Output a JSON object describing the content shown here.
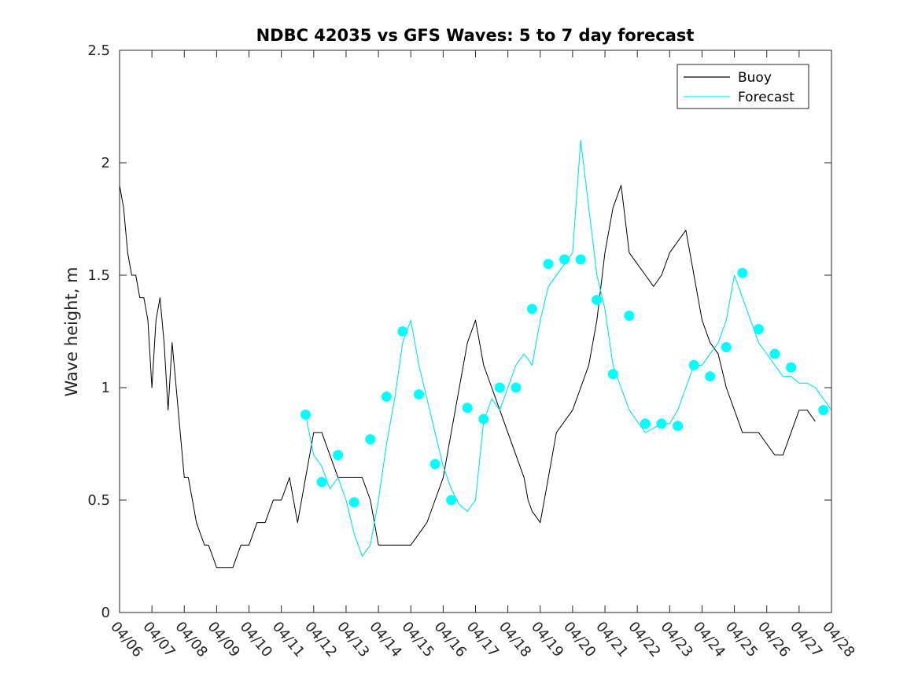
{
  "chart_data": {
    "type": "line",
    "title": "NDBC 42035 vs GFS Waves: 5 to 7 day forecast",
    "xlabel": "",
    "ylabel": "Wave height, m",
    "x_start": "04/06",
    "x_end": "04/28",
    "xlim": [
      "04/06",
      "04/28"
    ],
    "ylim": [
      0,
      2.5
    ],
    "yticks": [
      0,
      0.5,
      1,
      1.5,
      2,
      2.5
    ],
    "ytick_labels": [
      "0",
      "0.5",
      "1",
      "1.5",
      "2",
      "2.5"
    ],
    "xtick_labels": [
      "04/06",
      "04/07",
      "04/08",
      "04/09",
      "04/10",
      "04/11",
      "04/12",
      "04/13",
      "04/14",
      "04/15",
      "04/16",
      "04/17",
      "04/18",
      "04/19",
      "04/20",
      "04/21",
      "04/22",
      "04/23",
      "04/24",
      "04/25",
      "04/26",
      "04/27",
      "04/28"
    ],
    "grid": false,
    "legend_position": "top-right",
    "legend": [
      {
        "label": "Buoy",
        "color": "#000000"
      },
      {
        "label": "Forecast",
        "color": "#00ffff"
      }
    ],
    "colors": {
      "buoy": "#000000",
      "forecast": "#00e5ee",
      "marker": "#00ffff"
    },
    "series": [
      {
        "name": "Buoy",
        "x": [
          "04/06 00:00",
          "04/06 03:00",
          "04/06 06:00",
          "04/06 09:00",
          "04/06 12:00",
          "04/06 15:00",
          "04/06 18:00",
          "04/06 21:00",
          "04/07 00:00",
          "04/07 03:00",
          "04/07 06:00",
          "04/07 09:00",
          "04/07 12:00",
          "04/07 15:00",
          "04/07 18:00",
          "04/07 21:00",
          "04/08 00:00",
          "04/08 03:00",
          "04/08 06:00",
          "04/08 09:00",
          "04/08 12:00",
          "04/08 15:00",
          "04/08 18:00",
          "04/08 21:00",
          "04/09 00:00",
          "04/09 06:00",
          "04/09 12:00",
          "04/09 18:00",
          "04/10 00:00",
          "04/10 06:00",
          "04/10 12:00",
          "04/10 18:00",
          "04/11 00:00",
          "04/11 06:00",
          "04/11 12:00",
          "04/11 18:00",
          "04/12 00:00",
          "04/12 06:00",
          "04/12 12:00",
          "04/12 18:00",
          "04/13 00:00",
          "04/13 06:00",
          "04/13 12:00",
          "04/13 18:00",
          "04/14 00:00",
          "04/14 06:00",
          "04/14 12:00",
          "04/14 18:00",
          "04/15 00:00",
          "04/15 06:00",
          "04/15 12:00",
          "04/15 18:00",
          "04/16 00:00",
          "04/16 06:00",
          "04/16 12:00",
          "04/16 18:00",
          "04/17 00:00",
          "04/17 06:00",
          "04/17 12:00",
          "04/17 18:00",
          "04/18 00:00",
          "04/18 06:00",
          "04/18 12:00",
          "04/18 15:00",
          "04/18 18:00",
          "04/19 00:00",
          "04/19 06:00",
          "04/19 12:00",
          "04/19 18:00",
          "04/20 00:00",
          "04/20 06:00",
          "04/20 12:00",
          "04/20 18:00",
          "04/21 00:00",
          "04/21 06:00",
          "04/21 12:00",
          "04/21 18:00",
          "04/22 00:00",
          "04/22 06:00",
          "04/22 12:00",
          "04/22 18:00",
          "04/23 00:00",
          "04/23 06:00",
          "04/23 12:00",
          "04/23 18:00",
          "04/24 00:00",
          "04/24 06:00",
          "04/24 12:00",
          "04/24 18:00",
          "04/25 00:00",
          "04/25 06:00",
          "04/25 12:00",
          "04/25 18:00",
          "04/26 00:00",
          "04/26 06:00",
          "04/26 12:00",
          "04/26 18:00",
          "04/27 00:00",
          "04/27 06:00",
          "04/27 12:00"
        ],
        "y": [
          1.9,
          1.8,
          1.6,
          1.5,
          1.5,
          1.4,
          1.4,
          1.3,
          1.0,
          1.3,
          1.4,
          1.2,
          0.9,
          1.2,
          1.0,
          0.8,
          0.6,
          0.6,
          0.5,
          0.4,
          0.35,
          0.3,
          0.3,
          0.25,
          0.2,
          0.2,
          0.2,
          0.3,
          0.3,
          0.4,
          0.4,
          0.5,
          0.5,
          0.6,
          0.4,
          0.6,
          0.8,
          0.8,
          0.7,
          0.6,
          0.6,
          0.6,
          0.6,
          0.5,
          0.3,
          0.3,
          0.3,
          0.3,
          0.3,
          0.35,
          0.4,
          0.5,
          0.6,
          0.8,
          1.0,
          1.2,
          1.3,
          1.1,
          1.0,
          0.9,
          0.8,
          0.7,
          0.6,
          0.5,
          0.45,
          0.4,
          0.6,
          0.8,
          0.85,
          0.9,
          1.0,
          1.1,
          1.3,
          1.6,
          1.8,
          1.9,
          1.6,
          1.55,
          1.5,
          1.45,
          1.5,
          1.6,
          1.65,
          1.7,
          1.5,
          1.3,
          1.2,
          1.15,
          1.0,
          0.9,
          0.8,
          0.8,
          0.8,
          0.75,
          0.7,
          0.7,
          0.8,
          0.9,
          0.9,
          0.85
        ]
      },
      {
        "name": "Forecast",
        "x": [
          "04/11 18:00",
          "04/12 00:00",
          "04/12 06:00",
          "04/12 12:00",
          "04/12 18:00",
          "04/13 00:00",
          "04/13 06:00",
          "04/13 12:00",
          "04/13 18:00",
          "04/14 00:00",
          "04/14 06:00",
          "04/14 12:00",
          "04/14 18:00",
          "04/15 00:00",
          "04/15 06:00",
          "04/15 12:00",
          "04/15 18:00",
          "04/16 00:00",
          "04/16 06:00",
          "04/16 12:00",
          "04/16 18:00",
          "04/17 00:00",
          "04/17 06:00",
          "04/17 12:00",
          "04/17 18:00",
          "04/18 00:00",
          "04/18 06:00",
          "04/18 12:00",
          "04/18 18:00",
          "04/19 00:00",
          "04/19 06:00",
          "04/19 12:00",
          "04/19 18:00",
          "04/20 00:00",
          "04/20 06:00",
          "04/20 12:00",
          "04/20 18:00",
          "04/21 00:00",
          "04/21 06:00",
          "04/21 12:00",
          "04/21 18:00",
          "04/22 00:00",
          "04/22 06:00",
          "04/22 12:00",
          "04/22 18:00",
          "04/23 00:00",
          "04/23 06:00",
          "04/23 12:00",
          "04/23 18:00",
          "04/24 00:00",
          "04/24 06:00",
          "04/24 12:00",
          "04/24 18:00",
          "04/25 00:00",
          "04/25 06:00",
          "04/25 12:00",
          "04/25 18:00",
          "04/26 00:00",
          "04/26 06:00",
          "04/26 12:00",
          "04/26 18:00",
          "04/27 00:00",
          "04/27 06:00",
          "04/27 12:00",
          "04/27 18:00",
          "04/28 00:00"
        ],
        "y": [
          0.88,
          0.7,
          0.65,
          0.55,
          0.6,
          0.5,
          0.35,
          0.25,
          0.3,
          0.5,
          0.75,
          0.95,
          1.2,
          1.3,
          1.1,
          0.95,
          0.8,
          0.65,
          0.55,
          0.48,
          0.45,
          0.5,
          0.85,
          0.95,
          0.9,
          1.0,
          1.1,
          1.15,
          1.1,
          1.3,
          1.45,
          1.5,
          1.55,
          1.6,
          2.1,
          1.8,
          1.5,
          1.35,
          1.1,
          1.0,
          0.9,
          0.85,
          0.8,
          0.82,
          0.84,
          0.84,
          0.9,
          1.0,
          1.1,
          1.1,
          1.15,
          1.2,
          1.3,
          1.5,
          1.4,
          1.3,
          1.2,
          1.15,
          1.1,
          1.05,
          1.05,
          1.02,
          1.02,
          1.0,
          0.95,
          0.9
        ]
      }
    ],
    "markers": {
      "name": "Forecast",
      "x": [
        "04/11 18:00",
        "04/12 06:00",
        "04/12 18:00",
        "04/13 06:00",
        "04/13 18:00",
        "04/14 06:00",
        "04/14 18:00",
        "04/15 06:00",
        "04/15 18:00",
        "04/16 06:00",
        "04/16 18:00",
        "04/17 06:00",
        "04/17 18:00",
        "04/18 06:00",
        "04/18 18:00",
        "04/19 06:00",
        "04/19 18:00",
        "04/20 06:00",
        "04/20 18:00",
        "04/21 06:00",
        "04/21 18:00",
        "04/22 06:00",
        "04/22 18:00",
        "04/23 06:00",
        "04/23 18:00",
        "04/24 06:00",
        "04/24 18:00",
        "04/25 06:00",
        "04/25 18:00",
        "04/26 06:00",
        "04/26 18:00",
        "04/27 18:00"
      ],
      "y": [
        0.88,
        0.58,
        0.7,
        0.49,
        0.77,
        0.96,
        1.25,
        0.97,
        0.66,
        0.5,
        0.91,
        0.86,
        1.0,
        1.0,
        1.35,
        1.55,
        1.57,
        1.57,
        1.39,
        1.06,
        1.32,
        0.84,
        0.84,
        0.83,
        1.1,
        1.05,
        1.18,
        1.51,
        1.26,
        1.15,
        1.09,
        0.9
      ]
    }
  }
}
